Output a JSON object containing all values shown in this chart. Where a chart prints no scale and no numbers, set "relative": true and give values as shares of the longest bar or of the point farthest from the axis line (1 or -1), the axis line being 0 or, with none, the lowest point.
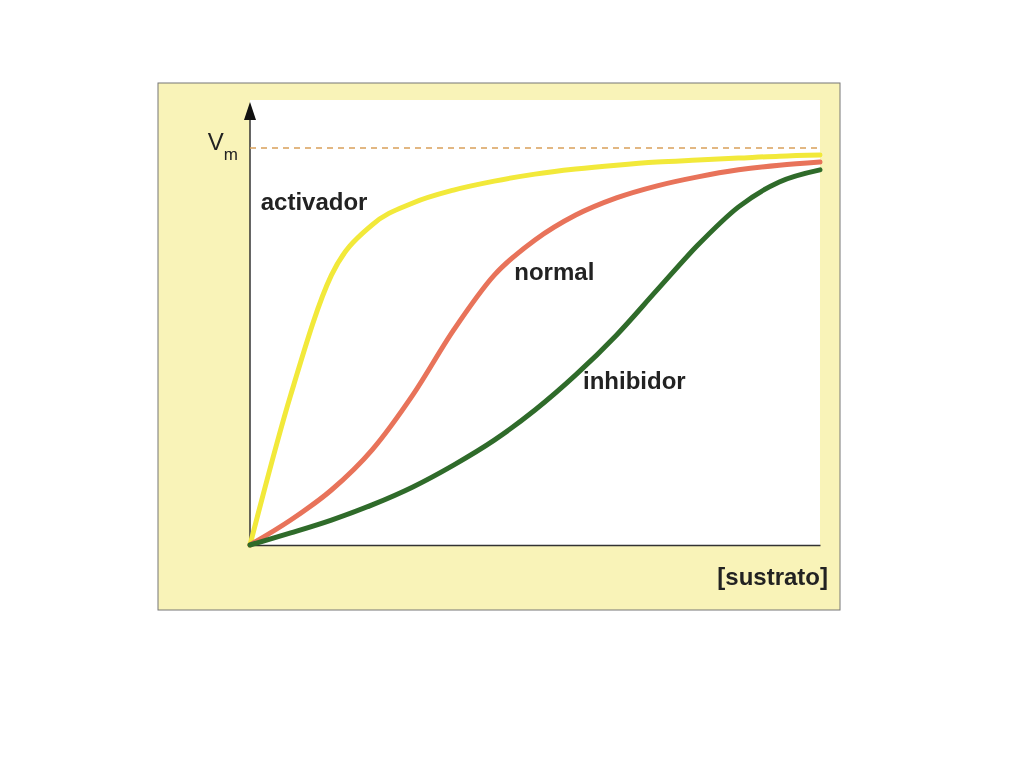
{
  "chart_data": {
    "type": "line",
    "relative": true,
    "xlabel": "[sustrato]",
    "categories": [
      null,
      null,
      null,
      null,
      null,
      null,
      null,
      null,
      null,
      null,
      null,
      null,
      null,
      null,
      null
    ],
    "series": [
      {
        "name": "activador",
        "color": "#f2e93a",
        "values": [
          0,
          0.385,
          0.692,
          0.821,
          0.877,
          0.91,
          0.933,
          0.951,
          0.964,
          0.974,
          0.982,
          0.987,
          0.992,
          0.997,
          1
        ]
      },
      {
        "name": "normal",
        "color": "#e8735a",
        "values": [
          0,
          0.064,
          0.141,
          0.244,
          0.385,
          0.551,
          0.692,
          0.782,
          0.846,
          0.89,
          0.921,
          0.944,
          0.962,
          0.974,
          0.982
        ]
      },
      {
        "name": "inhibidor",
        "color": "#2f6b2a",
        "values": [
          0,
          0.031,
          0.064,
          0.103,
          0.149,
          0.205,
          0.269,
          0.346,
          0.436,
          0.538,
          0.654,
          0.769,
          0.867,
          0.931,
          0.962
        ]
      }
    ],
    "ref_lines": [
      {
        "axis": "y",
        "value": 1.018,
        "label": "V$_{m}$",
        "color": "#d9a05a",
        "line_style": "dashed"
      }
    ],
    "marker": "none",
    "line_style": "solid"
  }
}
